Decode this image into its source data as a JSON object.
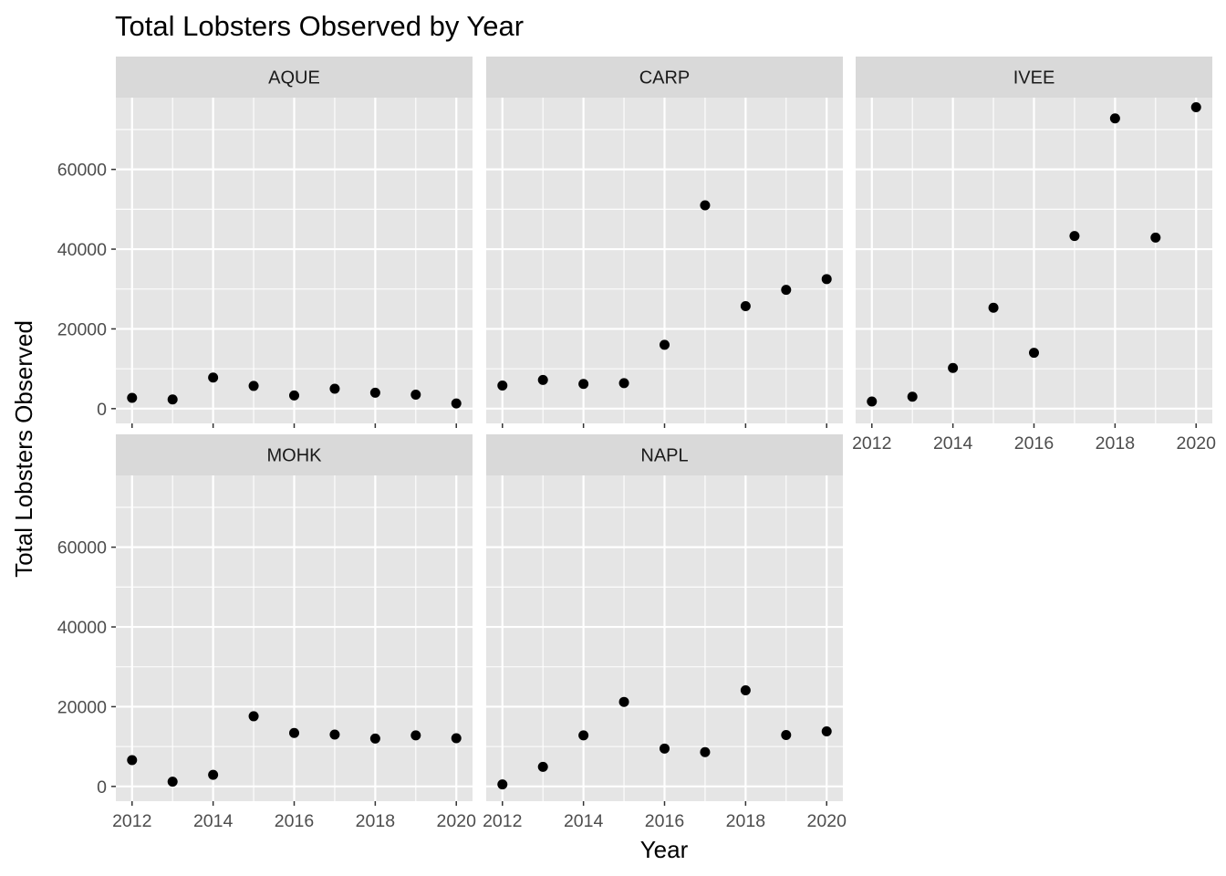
{
  "chart_data": {
    "type": "scatter",
    "title": "Total Lobsters Observed by Year",
    "xlabel": "Year",
    "ylabel": "Total Lobsters Observed",
    "xlim": [
      2011.6,
      2020.4
    ],
    "ylim": [
      -3700,
      78000
    ],
    "x_ticks": [
      2012,
      2014,
      2016,
      2018,
      2020
    ],
    "y_ticks": [
      0,
      20000,
      40000,
      60000
    ],
    "grid": true,
    "colors": {
      "panel_background": "#e5e5e5",
      "grid": "#ffffff",
      "strip_background": "#d9d9d9",
      "point": "#000000",
      "tick_text": "#4d4d4d",
      "tick_mark": "#333333"
    },
    "x": [
      2012,
      2013,
      2014,
      2015,
      2016,
      2017,
      2018,
      2019,
      2020
    ],
    "panels": [
      {
        "name": "AQUE",
        "values": [
          2700,
          2300,
          7800,
          5700,
          3300,
          5000,
          4000,
          3500,
          1300
        ]
      },
      {
        "name": "CARP",
        "values": [
          5800,
          7200,
          6200,
          6400,
          16000,
          51000,
          25700,
          29800,
          32500
        ]
      },
      {
        "name": "IVEE",
        "values": [
          1800,
          3000,
          10200,
          25300,
          14000,
          43300,
          72800,
          42900,
          75600
        ]
      },
      {
        "name": "MOHK",
        "values": [
          6600,
          1200,
          2900,
          17600,
          13400,
          13000,
          12000,
          12800,
          12100
        ]
      },
      {
        "name": "NAPL",
        "values": [
          500,
          4900,
          12800,
          21200,
          9500,
          8600,
          24100,
          12900,
          13800
        ]
      }
    ]
  }
}
